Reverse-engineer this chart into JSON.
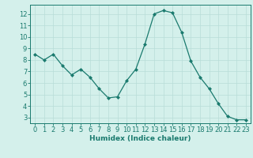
{
  "x": [
    0,
    1,
    2,
    3,
    4,
    5,
    6,
    7,
    8,
    9,
    10,
    11,
    12,
    13,
    14,
    15,
    16,
    17,
    18,
    19,
    20,
    21,
    22,
    23
  ],
  "y": [
    8.5,
    8.0,
    8.5,
    7.5,
    6.7,
    7.2,
    6.5,
    5.5,
    4.7,
    4.8,
    6.2,
    7.2,
    9.4,
    12.0,
    12.3,
    12.1,
    10.4,
    7.9,
    6.5,
    5.5,
    4.2,
    3.1,
    2.8,
    2.8
  ],
  "line_color": "#1a7a6e",
  "marker": "D",
  "marker_size": 2.0,
  "bg_color": "#d4f0eb",
  "grid_color": "#b8ddd8",
  "xlabel": "Humidex (Indice chaleur)",
  "ylim": [
    2.5,
    12.8
  ],
  "xlim": [
    -0.5,
    23.5
  ],
  "yticks": [
    3,
    4,
    5,
    6,
    7,
    8,
    9,
    10,
    11,
    12
  ],
  "xticks": [
    0,
    1,
    2,
    3,
    4,
    5,
    6,
    7,
    8,
    9,
    10,
    11,
    12,
    13,
    14,
    15,
    16,
    17,
    18,
    19,
    20,
    21,
    22,
    23
  ],
  "axis_color": "#1a7a6e",
  "tick_color": "#1a7a6e",
  "label_fontsize": 6.5,
  "tick_fontsize": 6.0,
  "linewidth": 0.9
}
